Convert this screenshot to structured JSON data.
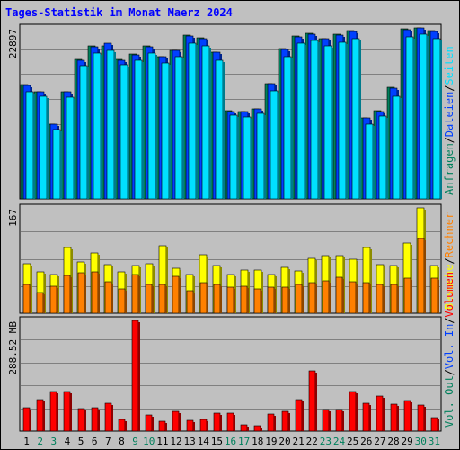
{
  "chart_data": {
    "type": "bar",
    "title": "Tages-Statistik im Monat Maerz 2024",
    "categories": [
      "1",
      "2",
      "3",
      "4",
      "5",
      "6",
      "7",
      "8",
      "9",
      "10",
      "11",
      "12",
      "13",
      "14",
      "15",
      "16",
      "17",
      "18",
      "19",
      "20",
      "21",
      "22",
      "23",
      "24",
      "25",
      "26",
      "27",
      "28",
      "29",
      "30",
      "31"
    ],
    "weekend_days": [
      "2",
      "3",
      "9",
      "10",
      "16",
      "17",
      "23",
      "24",
      "30",
      "31"
    ],
    "colors": {
      "background": "#c0c0c0",
      "plot": "#c0c0c0",
      "hits": "#00805c",
      "files": "#0040ff",
      "pages": "#00e0ff",
      "visits": "#ffff00",
      "sites": "#ff8000",
      "kbytes": "#ff0000",
      "weekday_label": "#000000",
      "weekend_label": "#00805c",
      "title": "#0000ff"
    },
    "panels": [
      {
        "id": "requests",
        "ymax_label": "22897",
        "ymax": 22897,
        "legend": [
          {
            "text": "Anfragen",
            "color": "#00805c"
          },
          {
            "text": "Dateien",
            "color": "#0040ff"
          },
          {
            "text": "Seiten",
            "color": "#00e0ff"
          }
        ],
        "series": [
          {
            "name": "Anfragen",
            "values": [
              15300,
              14400,
              9990,
              14390,
              18690,
              20500,
              20500,
              18700,
              19400,
              20500,
              19100,
              19900,
              21900,
              21600,
              19700,
              11800,
              11700,
              12100,
              15450,
              20090,
              21800,
              22200,
              21500,
              22000,
              22500,
              10900,
              11800,
              14900,
              22800,
              22897,
              22500
            ]
          },
          {
            "name": "Dateien",
            "values": [
              15200,
              14300,
              9950,
              14300,
              18580,
              20400,
              20800,
              18580,
              19300,
              20400,
              19000,
              19900,
              21800,
              21500,
              19600,
              11650,
              11630,
              12050,
              15400,
              20000,
              21700,
              22100,
              21400,
              21900,
              22400,
              10800,
              11700,
              14850,
              22700,
              22897,
              22400
            ]
          },
          {
            "name": "Seiten",
            "values": [
              14400,
              13700,
              9300,
              13600,
              17800,
              19500,
              19900,
              17900,
              18600,
              19500,
              18200,
              19000,
              20800,
              20500,
              18600,
              11200,
              11000,
              11500,
              14500,
              19100,
              20800,
              21200,
              20500,
              21000,
              21400,
              10000,
              11100,
              13700,
              21700,
              22000,
              21400
            ]
          }
        ]
      },
      {
        "id": "visits",
        "ymax_label": "167",
        "ymax": 167,
        "legend": [
          {
            "text": "Besuche",
            "color": "#ffff00"
          },
          {
            "text": "Rechner",
            "color": "#ff8000"
          }
        ],
        "series": [
          {
            "name": "Besuche",
            "values": [
              78,
              66,
              61,
              104,
              82,
              95,
              77,
              66,
              75,
              79,
              107,
              72,
              62,
              93,
              76,
              61,
              68,
              68,
              61,
              73,
              67,
              87,
              92,
              92,
              86,
              104,
              77,
              76,
              111,
              167,
              76
            ]
          },
          {
            "name": "Rechner",
            "values": [
              45,
              33,
              43,
              60,
              64,
              66,
              50,
              38,
              61,
              45,
              45,
              59,
              36,
              49,
              45,
              42,
              43,
              39,
              42,
              41,
              46,
              49,
              51,
              57,
              50,
              48,
              45,
              45,
              55,
              118,
              55
            ]
          }
        ]
      },
      {
        "id": "volume",
        "ymax_label": "288.52 MB",
        "ymax": 288.52,
        "legend": [
          {
            "text": "Vol. Out",
            "color": "#00805c"
          },
          {
            "text": "Vol. In",
            "color": "#0040ff"
          },
          {
            "text": "Volumen",
            "color": "#ff0000"
          }
        ],
        "series": [
          {
            "name": "Volumen",
            "values": [
              61,
              82,
              104,
              104,
              58,
              61,
              73,
              31,
              288,
              42,
              26,
              52,
              28,
              30,
              47,
              47,
              17,
              15,
              45,
              51,
              82,
              156,
              57,
              57,
              104,
              73,
              92,
              71,
              80,
              67,
              35
            ]
          }
        ]
      }
    ]
  }
}
